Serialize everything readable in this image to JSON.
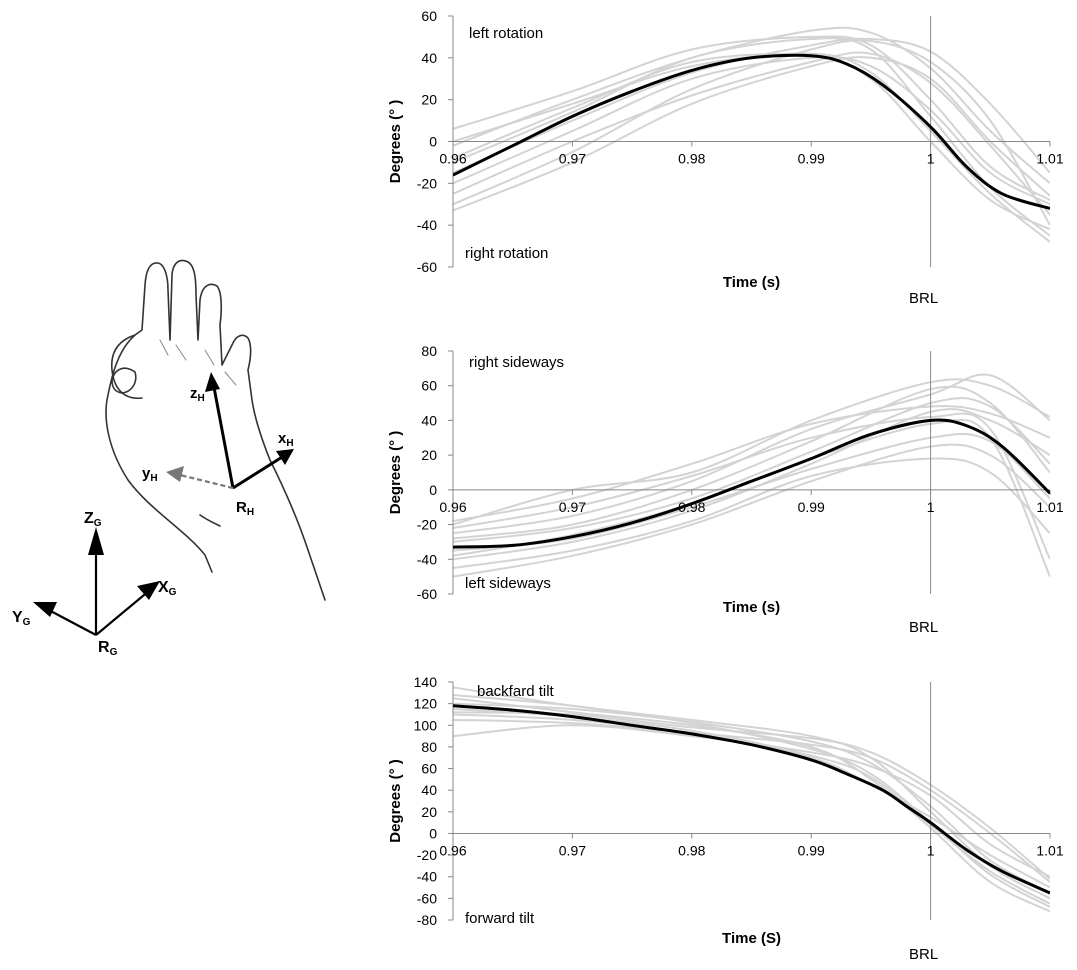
{
  "hand_diagram": {
    "local_axes": {
      "z": "z",
      "z_sub": "H",
      "x": "x",
      "x_sub": "H",
      "y": "y",
      "y_sub": "H",
      "origin": "R",
      "origin_sub": "H"
    },
    "global_axes": {
      "z": "Z",
      "z_sub": "G",
      "x": "X",
      "x_sub": "G",
      "y": "Y",
      "y_sub": "G",
      "origin": "R",
      "origin_sub": "G"
    }
  },
  "chart_data": [
    {
      "type": "line",
      "xlabel": "Time (s)",
      "ylabel": "Degrees (°  )",
      "xlim": [
        0.96,
        1.01
      ],
      "ylim": [
        -60,
        60
      ],
      "xticks": [
        0.96,
        0.97,
        0.98,
        0.99,
        1,
        1.01
      ],
      "yticks": [
        60,
        40,
        20,
        0,
        -20,
        -40,
        -60
      ],
      "xtick_labels": [
        "0.96",
        "0.97",
        "0.98",
        "0.99",
        "1",
        "1.01"
      ],
      "ytick_labels": [
        "60",
        "40",
        "20",
        "0",
        "-20",
        "-40",
        "-60"
      ],
      "marker_x": 1,
      "marker_label": "BRL",
      "annotation_top": "left rotation",
      "annotation_bottom": "right rotation",
      "colors": {
        "mean": "#000000",
        "trials": "#d3d3d3"
      },
      "mean": {
        "x": [
          0.96,
          0.965,
          0.97,
          0.975,
          0.98,
          0.985,
          0.99,
          0.993,
          0.996,
          1.0,
          1.003,
          1.006,
          1.01
        ],
        "y": [
          -16,
          -2,
          12,
          24,
          34,
          40,
          41,
          37,
          27,
          7,
          -12,
          -25,
          -32
        ]
      },
      "trials": [
        {
          "x": [
            0.96,
            0.97,
            0.98,
            0.99,
            0.995,
            1.0,
            1.005,
            1.01
          ],
          "y": [
            6,
            24,
            44,
            50,
            46,
            20,
            -12,
            -28
          ]
        },
        {
          "x": [
            0.96,
            0.97,
            0.98,
            0.99,
            0.995,
            1.0,
            1.005,
            1.01
          ],
          "y": [
            -2,
            20,
            40,
            53,
            52,
            35,
            5,
            -20
          ]
        },
        {
          "x": [
            0.96,
            0.97,
            0.98,
            0.99,
            0.995,
            1.0,
            1.005,
            1.01
          ],
          "y": [
            -10,
            14,
            40,
            49,
            44,
            12,
            -22,
            -45
          ]
        },
        {
          "x": [
            0.96,
            0.97,
            0.98,
            0.99,
            0.995,
            1.0,
            1.005,
            1.01
          ],
          "y": [
            -20,
            5,
            30,
            40,
            36,
            15,
            -15,
            -30
          ]
        },
        {
          "x": [
            0.96,
            0.97,
            0.98,
            0.99,
            0.995,
            1.0,
            1.005,
            1.01
          ],
          "y": [
            -30,
            -5,
            25,
            44,
            48,
            38,
            10,
            -40
          ]
        },
        {
          "x": [
            0.96,
            0.97,
            0.98,
            0.99,
            0.995,
            1.0,
            1.005,
            1.01
          ],
          "y": [
            0,
            18,
            36,
            42,
            33,
            5,
            -25,
            -48
          ]
        },
        {
          "x": [
            0.96,
            0.97,
            0.98,
            0.99,
            0.995,
            1.0,
            1.005,
            1.01
          ],
          "y": [
            -25,
            0,
            22,
            38,
            42,
            28,
            -2,
            -35
          ]
        },
        {
          "x": [
            0.96,
            0.97,
            0.98,
            0.99,
            0.995,
            1.0,
            1.005,
            1.01
          ],
          "y": [
            -15,
            10,
            33,
            46,
            49,
            43,
            18,
            -15
          ]
        },
        {
          "x": [
            0.96,
            0.97,
            0.98,
            0.99,
            0.995,
            1.0,
            1.005,
            1.01
          ],
          "y": [
            -8,
            16,
            38,
            41,
            30,
            0,
            -28,
            -42
          ]
        },
        {
          "x": [
            0.96,
            0.97,
            0.98,
            0.99,
            0.995,
            1.0,
            1.005,
            1.01
          ],
          "y": [
            -33,
            -10,
            18,
            36,
            40,
            30,
            0,
            -26
          ]
        }
      ]
    },
    {
      "type": "line",
      "xlabel": "Time (s)",
      "ylabel": "Degrees (°  )",
      "xlim": [
        0.96,
        1.01
      ],
      "ylim": [
        -60,
        80
      ],
      "xticks": [
        0.96,
        0.97,
        0.98,
        0.99,
        1,
        1.01
      ],
      "yticks": [
        80,
        60,
        40,
        20,
        0,
        -20,
        -40,
        -60
      ],
      "xtick_labels": [
        "0.96",
        "0.97",
        "0.98",
        "0.99",
        "1",
        "1.01"
      ],
      "ytick_labels": [
        "80",
        "60",
        "40",
        "20",
        "0",
        "-20",
        "-40",
        "-60"
      ],
      "marker_x": 1,
      "marker_label": "BRL",
      "annotation_top": "right sideways",
      "annotation_bottom": "left sideways",
      "colors": {
        "mean": "#000000",
        "trials": "#d3d3d3"
      },
      "mean": {
        "x": [
          0.96,
          0.965,
          0.97,
          0.975,
          0.98,
          0.985,
          0.99,
          0.995,
          1.0,
          1.003,
          1.006,
          1.01
        ],
        "y": [
          -33,
          -32,
          -27,
          -19,
          -8,
          5,
          18,
          32,
          40,
          37,
          25,
          -2
        ]
      },
      "trials": [
        {
          "x": [
            0.96,
            0.97,
            0.98,
            0.99,
            1.0,
            1.005,
            1.01
          ],
          "y": [
            -20,
            0,
            10,
            40,
            62,
            60,
            42
          ]
        },
        {
          "x": [
            0.96,
            0.97,
            0.98,
            0.99,
            1.0,
            1.005,
            1.01
          ],
          "y": [
            -25,
            -15,
            5,
            35,
            55,
            66,
            40
          ]
        },
        {
          "x": [
            0.96,
            0.97,
            0.98,
            0.99,
            1.0,
            1.005,
            1.01
          ],
          "y": [
            -40,
            -30,
            -12,
            15,
            45,
            40,
            20
          ]
        },
        {
          "x": [
            0.96,
            0.97,
            0.98,
            0.99,
            1.0,
            1.005,
            1.01
          ],
          "y": [
            -50,
            -38,
            -20,
            5,
            25,
            20,
            -10
          ]
        },
        {
          "x": [
            0.96,
            0.97,
            0.98,
            0.99,
            1.0,
            1.005,
            1.01
          ],
          "y": [
            -30,
            -22,
            -5,
            22,
            50,
            48,
            15
          ]
        },
        {
          "x": [
            0.96,
            0.97,
            0.98,
            0.99,
            1.0,
            1.005,
            1.01
          ],
          "y": [
            -35,
            -28,
            -10,
            12,
            30,
            28,
            -5
          ]
        },
        {
          "x": [
            0.96,
            0.97,
            0.98,
            0.99,
            1.0,
            1.005,
            1.01
          ],
          "y": [
            -28,
            -20,
            0,
            28,
            58,
            50,
            10
          ]
        },
        {
          "x": [
            0.96,
            0.97,
            0.98,
            0.99,
            1.0,
            1.005,
            1.01
          ],
          "y": [
            -45,
            -35,
            -18,
            8,
            18,
            10,
            -25
          ]
        },
        {
          "x": [
            0.96,
            0.97,
            0.98,
            0.99,
            1.0,
            1.005,
            1.01
          ],
          "y": [
            -22,
            -10,
            8,
            30,
            42,
            35,
            -40
          ]
        },
        {
          "x": [
            0.96,
            0.97,
            0.98,
            0.99,
            1.0,
            1.005,
            1.01
          ],
          "y": [
            -38,
            -26,
            -8,
            18,
            38,
            30,
            -50
          ]
        },
        {
          "x": [
            0.96,
            0.97,
            0.98,
            0.99,
            1.0,
            1.005,
            1.01
          ],
          "y": [
            -18,
            -5,
            15,
            38,
            48,
            44,
            30
          ]
        }
      ]
    },
    {
      "type": "line",
      "xlabel": "Time (S)",
      "ylabel": "Degrees (°  )",
      "xlim": [
        0.96,
        1.01
      ],
      "ylim": [
        -80,
        140
      ],
      "xticks": [
        0.96,
        0.97,
        0.98,
        0.99,
        1,
        1.01
      ],
      "yticks": [
        140,
        120,
        100,
        80,
        60,
        40,
        20,
        0,
        -20,
        -40,
        -60,
        -80
      ],
      "xtick_labels": [
        "0.96",
        "0.97",
        "0.98",
        "0.99",
        "1",
        "1.01"
      ],
      "ytick_labels": [
        "140",
        "120",
        "100",
        "80",
        "60",
        "40",
        "20",
        "0",
        "-20",
        "-40",
        "-60",
        "-80"
      ],
      "marker_x": 1,
      "marker_label": "BRL",
      "annotation_top": "backfard tilt",
      "annotation_bottom": "forward tilt",
      "colors": {
        "mean": "#000000",
        "trials": "#d3d3d3"
      },
      "mean": {
        "x": [
          0.96,
          0.965,
          0.97,
          0.975,
          0.98,
          0.985,
          0.99,
          0.993,
          0.996,
          0.998,
          1.0,
          1.003,
          1.006,
          1.01
        ],
        "y": [
          118,
          114,
          108,
          100,
          92,
          82,
          68,
          55,
          40,
          25,
          10,
          -15,
          -35,
          -55
        ]
      },
      "trials": [
        {
          "x": [
            0.96,
            0.97,
            0.98,
            0.99,
            0.995,
            1.0,
            1.005,
            1.01
          ],
          "y": [
            135,
            118,
            105,
            90,
            70,
            20,
            -30,
            -60
          ]
        },
        {
          "x": [
            0.96,
            0.97,
            0.98,
            0.99,
            0.995,
            1.0,
            1.005,
            1.01
          ],
          "y": [
            125,
            112,
            100,
            80,
            50,
            5,
            -45,
            -72
          ]
        },
        {
          "x": [
            0.96,
            0.97,
            0.98,
            0.99,
            0.995,
            1.0,
            1.005,
            1.01
          ],
          "y": [
            110,
            105,
            92,
            70,
            45,
            15,
            -20,
            -50
          ]
        },
        {
          "x": [
            0.96,
            0.97,
            0.98,
            0.99,
            0.995,
            1.0,
            1.005,
            1.01
          ],
          "y": [
            90,
            100,
            90,
            75,
            62,
            35,
            -10,
            -40
          ]
        },
        {
          "x": [
            0.96,
            0.97,
            0.98,
            0.99,
            0.995,
            1.0,
            1.005,
            1.01
          ],
          "y": [
            120,
            115,
            103,
            85,
            65,
            25,
            -25,
            -55
          ]
        },
        {
          "x": [
            0.96,
            0.97,
            0.98,
            0.99,
            0.995,
            1.0,
            1.005,
            1.01
          ],
          "y": [
            115,
            108,
            95,
            72,
            52,
            8,
            -35,
            -65
          ]
        },
        {
          "x": [
            0.96,
            0.97,
            0.98,
            0.99,
            0.995,
            1.0,
            1.005,
            1.01
          ],
          "y": [
            105,
            102,
            93,
            82,
            70,
            40,
            0,
            -45
          ]
        },
        {
          "x": [
            0.96,
            0.97,
            0.98,
            0.99,
            0.995,
            1.0,
            1.005,
            1.01
          ],
          "y": [
            128,
            118,
            102,
            78,
            55,
            10,
            -38,
            -68
          ]
        },
        {
          "x": [
            0.96,
            0.97,
            0.98,
            0.99,
            0.995,
            1.0,
            1.005,
            1.01
          ],
          "y": [
            112,
            110,
            98,
            88,
            75,
            45,
            5,
            -42
          ]
        }
      ]
    }
  ]
}
